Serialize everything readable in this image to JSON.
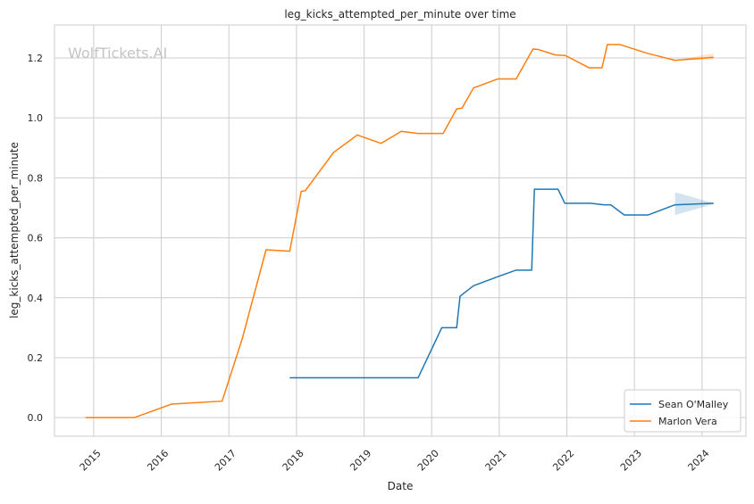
{
  "chart_data": {
    "type": "line",
    "title": "leg_kicks_attempted_per_minute over time",
    "xlabel": "Date",
    "ylabel": "leg_kicks_attempted_per_minute",
    "watermark": "WolfTickets.AI",
    "xlim": [
      2014.42,
      2024.65
    ],
    "ylim": [
      -0.062,
      1.31
    ],
    "x_ticks": [
      2015,
      2016,
      2017,
      2018,
      2019,
      2020,
      2021,
      2022,
      2023,
      2024
    ],
    "x_tick_labels": [
      "2015",
      "2016",
      "2017",
      "2018",
      "2019",
      "2020",
      "2021",
      "2022",
      "2023",
      "2024"
    ],
    "y_ticks": [
      0.0,
      0.2,
      0.4,
      0.6,
      0.8,
      1.0,
      1.2
    ],
    "y_tick_labels": [
      "0.0",
      "0.2",
      "0.4",
      "0.6",
      "0.8",
      "1.0",
      "1.2"
    ],
    "grid": true,
    "legend_position": "bottom-right",
    "series": [
      {
        "name": "Sean O'Malley",
        "color": "#1f77b4",
        "x": [
          2017.9,
          2019.8,
          2020.15,
          2020.37,
          2020.42,
          2020.62,
          2021.0,
          2021.25,
          2021.48,
          2021.52,
          2021.87,
          2021.97,
          2022.35,
          2022.55,
          2022.65,
          2022.85,
          2023.2,
          2023.6,
          2024.17
        ],
        "y": [
          0.133,
          0.133,
          0.3,
          0.3,
          0.405,
          0.44,
          0.472,
          0.492,
          0.492,
          0.762,
          0.762,
          0.715,
          0.715,
          0.71,
          0.71,
          0.676,
          0.676,
          0.71,
          0.715
        ],
        "band": {
          "x": [
            2023.6,
            2024.17
          ],
          "lower": [
            0.676,
            0.712
          ],
          "upper": [
            0.752,
            0.716
          ]
        }
      },
      {
        "name": "Marlon Vera",
        "color": "#ff7f0e",
        "x": [
          2014.88,
          2015.6,
          2016.15,
          2016.9,
          2017.2,
          2017.55,
          2017.9,
          2018.07,
          2018.13,
          2018.55,
          2018.9,
          2019.25,
          2019.55,
          2019.8,
          2020.17,
          2020.37,
          2020.45,
          2020.62,
          2020.98,
          2021.25,
          2021.5,
          2021.58,
          2021.83,
          2021.98,
          2022.33,
          2022.52,
          2022.6,
          2022.78,
          2023.2,
          2023.6,
          2024.17
        ],
        "y": [
          0.0,
          0.0,
          0.045,
          0.055,
          0.265,
          0.56,
          0.555,
          0.755,
          0.757,
          0.885,
          0.943,
          0.915,
          0.955,
          0.948,
          0.948,
          1.03,
          1.033,
          1.1,
          1.13,
          1.13,
          1.23,
          1.228,
          1.21,
          1.208,
          1.167,
          1.167,
          1.245,
          1.245,
          1.215,
          1.192,
          1.202
        ],
        "band": {
          "x": [
            2023.6,
            2024.17
          ],
          "lower": [
            1.191,
            1.195
          ],
          "upper": [
            1.193,
            1.215
          ]
        }
      }
    ]
  }
}
